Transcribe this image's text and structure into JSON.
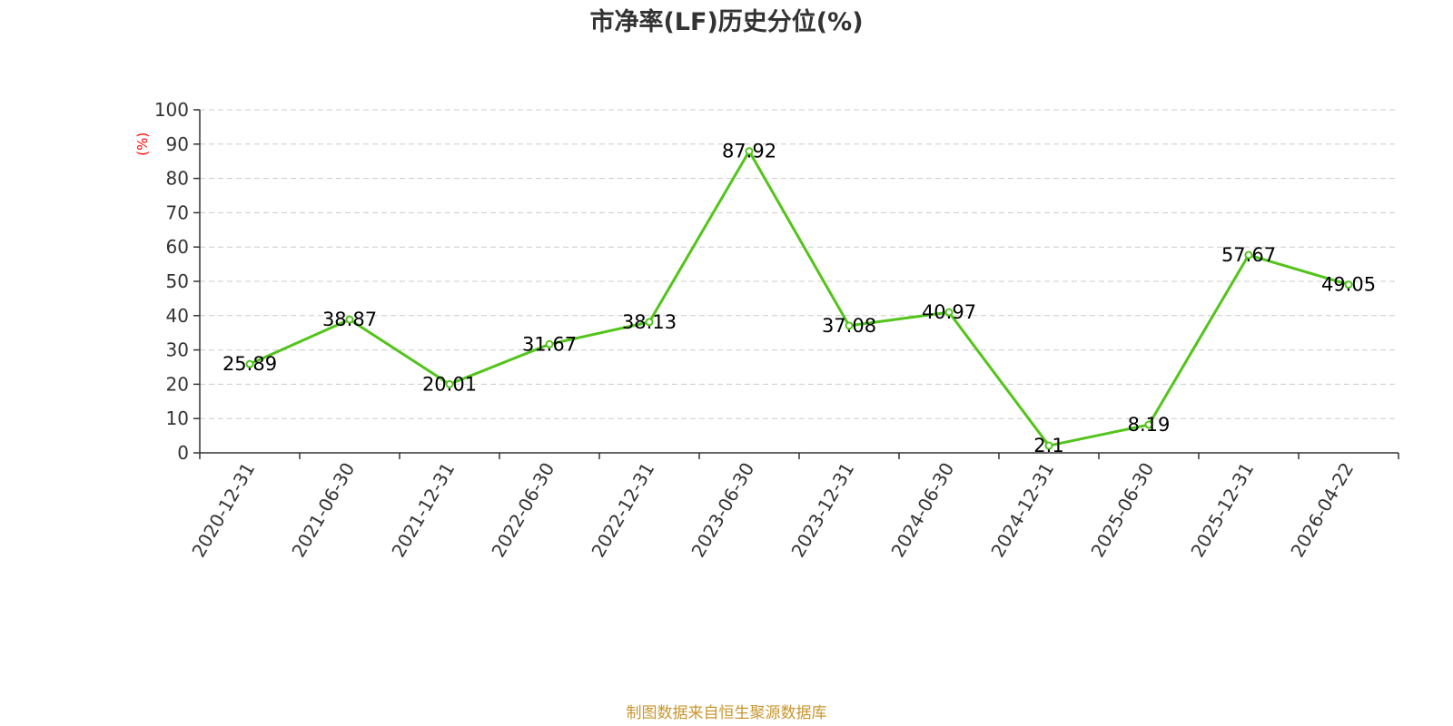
{
  "chart_data": {
    "type": "line",
    "title": "市净率(LF)历史分位(%)",
    "ylabel": "(%)",
    "xlabel": "",
    "categories": [
      "2020-12-31",
      "2021-06-30",
      "2021-12-31",
      "2022-06-30",
      "2022-12-31",
      "2023-06-30",
      "2023-12-31",
      "2024-06-30",
      "2024-12-31",
      "2025-06-30",
      "2025-12-31",
      "2026-04-22"
    ],
    "series": [
      {
        "values": [
          25.89,
          38.87,
          20.01,
          31.67,
          38.13,
          87.92,
          37.08,
          40.97,
          2.1,
          8.19,
          57.67,
          49.05
        ]
      }
    ],
    "data_labels": [
      "25.89",
      "38.87",
      "20.01",
      "31.67",
      "38.13",
      "87.92",
      "37.08",
      "40.97",
      "2.1",
      "8.19",
      "57.67",
      "49.05"
    ],
    "ylim": [
      0,
      100
    ],
    "yticks": [
      0,
      10,
      20,
      30,
      40,
      50,
      60,
      70,
      80,
      90,
      100
    ],
    "grid": true,
    "legend": "none",
    "line_color": "#52c41a",
    "source": "制图数据来自恒生聚源数据库"
  }
}
